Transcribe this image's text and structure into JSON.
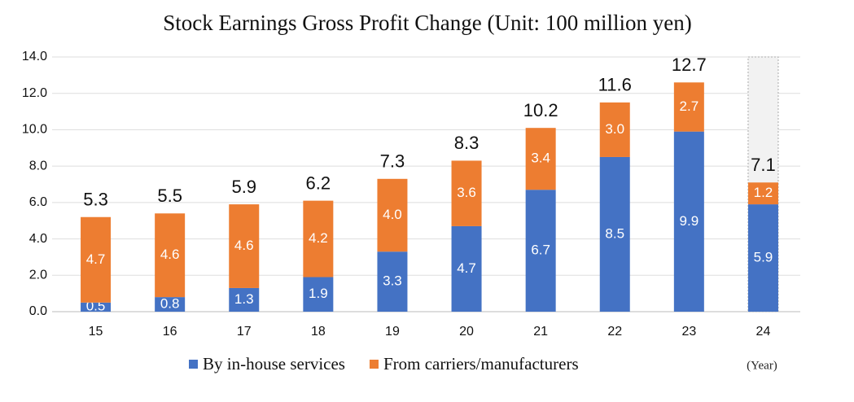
{
  "chart_data": {
    "type": "stacked_bar",
    "title": "Stock Earnings Gross Profit Change (Unit: 100 million yen)",
    "categories": [
      "15",
      "16",
      "17",
      "18",
      "19",
      "20",
      "21",
      "22",
      "23",
      "24"
    ],
    "series": [
      {
        "name": "By in-house services",
        "color": "#4472c4",
        "values": [
          0.5,
          0.8,
          1.3,
          1.9,
          3.3,
          4.7,
          6.7,
          8.5,
          9.9,
          5.9
        ],
        "value_labels": [
          "0.5",
          "0.8",
          "1.3",
          "1.9",
          "3.3",
          "4.7",
          "6.7",
          "8.5",
          "9.9",
          "5.9"
        ]
      },
      {
        "name": "From carriers/manufacturers",
        "color": "#ed7d31",
        "values": [
          4.7,
          4.6,
          4.6,
          4.2,
          4.0,
          3.6,
          3.4,
          3.0,
          2.7,
          1.2
        ],
        "value_labels": [
          "4.7",
          "4.6",
          "4.6",
          "4.2",
          "4.0",
          "3.6",
          "3.4",
          "3.0",
          "2.7",
          "1.2"
        ]
      }
    ],
    "totals": [
      5.3,
      5.5,
      5.9,
      6.2,
      7.3,
      8.3,
      10.2,
      11.6,
      12.7,
      7.1
    ],
    "x_unit": "(Year)",
    "ylim": [
      0,
      14
    ],
    "yticks": [
      {
        "value": 0,
        "label": "0.0"
      },
      {
        "value": 2,
        "label": "2.0"
      },
      {
        "value": 4,
        "label": "4.0"
      },
      {
        "value": 6,
        "label": "6.0"
      },
      {
        "value": 8,
        "label": "8.0"
      },
      {
        "value": 10,
        "label": "10.0"
      },
      {
        "value": 12,
        "label": "12.0"
      },
      {
        "value": 14,
        "label": "14.0"
      }
    ],
    "grid": true
  }
}
